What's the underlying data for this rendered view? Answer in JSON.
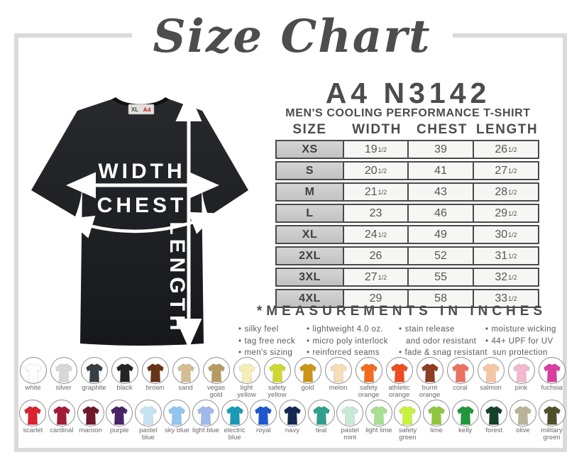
{
  "title": "Size Chart",
  "tshirt_graphic": {
    "width_label": "WIDTH",
    "chest_label": "CHEST",
    "length_label": "LENGTH",
    "neck_tag": {
      "size": "XL",
      "brand": "A4",
      "brand_color": "#cc2222"
    }
  },
  "product": {
    "code": "A4 N3142",
    "name": "MEN'S COOLING PERFORMANCE T-SHIRT"
  },
  "size_table": {
    "columns": [
      "SIZE",
      "WIDTH",
      "CHEST",
      "LENGTH"
    ],
    "rows": [
      {
        "size": "XS",
        "width": "19",
        "width_frac": "1/2",
        "chest": "39",
        "chest_frac": "",
        "length": "26",
        "length_frac": "1/2"
      },
      {
        "size": "S",
        "width": "20",
        "width_frac": "1/2",
        "chest": "41",
        "chest_frac": "",
        "length": "27",
        "length_frac": "1/2"
      },
      {
        "size": "M",
        "width": "21",
        "width_frac": "1/2",
        "chest": "43",
        "chest_frac": "",
        "length": "28",
        "length_frac": "1/2"
      },
      {
        "size": "L",
        "width": "23",
        "width_frac": "",
        "chest": "46",
        "chest_frac": "",
        "length": "29",
        "length_frac": "1/2"
      },
      {
        "size": "XL",
        "width": "24",
        "width_frac": "1/2",
        "chest": "49",
        "chest_frac": "",
        "length": "30",
        "length_frac": "1/2"
      },
      {
        "size": "2XL",
        "width": "26",
        "width_frac": "",
        "chest": "52",
        "chest_frac": "",
        "length": "31",
        "length_frac": "1/2"
      },
      {
        "size": "3XL",
        "width": "27",
        "width_frac": "1/2",
        "chest": "55",
        "chest_frac": "",
        "length": "32",
        "length_frac": "1/2"
      },
      {
        "size": "4XL",
        "width": "29",
        "width_frac": "",
        "chest": "58",
        "chest_frac": "",
        "length": "33",
        "length_frac": "1/2"
      }
    ]
  },
  "measurements_note": "*MEASUREMENTS IN INCHES",
  "features": {
    "columns": [
      {
        "lines": [
          {
            "bullet": true,
            "text": "silky feel"
          },
          {
            "bullet": true,
            "text": "tag free neck"
          },
          {
            "bullet": true,
            "text": "men's sizing"
          }
        ]
      },
      {
        "lines": [
          {
            "bullet": true,
            "text": "lightweight 4.0 oz."
          },
          {
            "bullet": true,
            "text": "micro poly interlock"
          },
          {
            "bullet": true,
            "text": "reinforced seams"
          }
        ]
      },
      {
        "lines": [
          {
            "bullet": true,
            "text": "stain release"
          },
          {
            "bullet": false,
            "text": "and odor resistant"
          },
          {
            "bullet": true,
            "text": "fade & snag resistant"
          }
        ]
      },
      {
        "lines": [
          {
            "bullet": true,
            "text": "moisture wicking"
          },
          {
            "bullet": true,
            "text": "44+ UPF for UV"
          },
          {
            "bullet": false,
            "text": "sun protection"
          }
        ]
      }
    ]
  },
  "colors": {
    "row1": [
      {
        "name": "white",
        "hex": "#fdfdfd"
      },
      {
        "name": "silver",
        "hex": "#d7d7d3"
      },
      {
        "name": "graphite",
        "hex": "#383f44"
      },
      {
        "name": "black",
        "hex": "#232528"
      },
      {
        "name": "brown",
        "hex": "#653419"
      },
      {
        "name": "sand",
        "hex": "#d5bd92"
      },
      {
        "name": "vegas gold",
        "hex": "#b49b61"
      },
      {
        "name": "light yellow",
        "hex": "#f6eeb4"
      },
      {
        "name": "safety yellow",
        "hex": "#cfd832"
      },
      {
        "name": "gold",
        "hex": "#cc9418"
      },
      {
        "name": "melon",
        "hex": "#f4ddb7"
      },
      {
        "name": "safety orange",
        "hex": "#f36b1c"
      },
      {
        "name": "athletic orange",
        "hex": "#ec4c20"
      },
      {
        "name": "burnt orange",
        "hex": "#8e3c22"
      },
      {
        "name": "coral",
        "hex": "#ea7261"
      },
      {
        "name": "salmon",
        "hex": "#f5c5a4"
      },
      {
        "name": "pink",
        "hex": "#f2b8d0"
      },
      {
        "name": "fuchsia",
        "hex": "#d83f9e"
      }
    ],
    "row2": [
      {
        "name": "scarlet",
        "hex": "#da2430"
      },
      {
        "name": "cardinal",
        "hex": "#a21c38"
      },
      {
        "name": "maroon",
        "hex": "#6d1a2c"
      },
      {
        "name": "purple",
        "hex": "#472566"
      },
      {
        "name": "pastel blue",
        "hex": "#c5e4f3"
      },
      {
        "name": "sky blue",
        "hex": "#90c6ef"
      },
      {
        "name": "light blue",
        "hex": "#9fbae9"
      },
      {
        "name": "electric blue",
        "hex": "#189ab6"
      },
      {
        "name": "royal",
        "hex": "#1f58ce"
      },
      {
        "name": "navy",
        "hex": "#152a52"
      },
      {
        "name": "teal",
        "hex": "#2fa08c"
      },
      {
        "name": "pastel mint",
        "hex": "#c6ead6"
      },
      {
        "name": "light lime",
        "hex": "#a8df92"
      },
      {
        "name": "safety green",
        "hex": "#c9f23c"
      },
      {
        "name": "lime",
        "hex": "#8ec63f"
      },
      {
        "name": "kelly",
        "hex": "#21963c"
      },
      {
        "name": "forest",
        "hex": "#15402a"
      },
      {
        "name": "olive",
        "hex": "#b9b499"
      },
      {
        "name": "military green",
        "hex": "#50512a"
      }
    ]
  }
}
